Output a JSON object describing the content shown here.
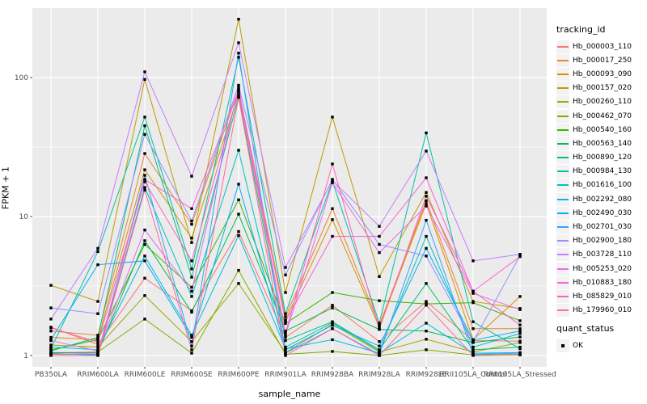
{
  "figure": {
    "x_axis_title": "sample_name",
    "y_axis_title": "FPKM + 1",
    "tracking_legend_title": "tracking_id",
    "quant_legend_title": "quant_status",
    "quant_status_label": "OK"
  },
  "chart_data": {
    "type": "line",
    "title": "",
    "xlabel": "sample_name",
    "ylabel": "FPKM + 1",
    "y_scale": "log10",
    "y_ticks": [
      1,
      10,
      100
    ],
    "y_tick_labels": [
      "1",
      "10",
      "100"
    ],
    "ylim": [
      0.83,
      316
    ],
    "grid": true,
    "panel_color": "#EBEBEB",
    "grid_color": "#FFFFFF",
    "tick_text_color": "#4D4D4D",
    "point_shape": "filled-black-square",
    "legend_position": "right",
    "quant_status": "OK",
    "categories": [
      "PB350LA",
      "RRIM600LA",
      "RRIM600LE",
      "RRIM600SE",
      "RRIM600PE",
      "RRIM901LA",
      "RRIM928BA",
      "RRIM928LA",
      "RRIM928LE",
      "RRII105LA_Control",
      "RRII105LA_Stressed"
    ],
    "series": [
      {
        "name": "Hb_000003_110",
        "color": "#F8766D",
        "values": [
          1.6,
          1.2,
          3.6,
          2.1,
          7.8,
          1.35,
          2.3,
          1.26,
          2.45,
          1.28,
          1.27
        ]
      },
      {
        "name": "Hb_000017_250",
        "color": "#EA8331",
        "values": [
          1.5,
          1.4,
          28.4,
          8.8,
          82,
          1.9,
          11.4,
          1.65,
          13.0,
          1.56,
          1.56
        ]
      },
      {
        "name": "Hb_000093_090",
        "color": "#D89000",
        "values": [
          1.35,
          1.3,
          21.7,
          7.0,
          76,
          1.8,
          9.5,
          1.6,
          12.4,
          1.3,
          2.66
        ]
      },
      {
        "name": "Hb_000157_020",
        "color": "#C09B00",
        "values": [
          3.2,
          2.45,
          97,
          6.5,
          263,
          2.84,
          52,
          3.7,
          14.9,
          2.45,
          2.18
        ]
      },
      {
        "name": "Hb_000260_110",
        "color": "#A3A500",
        "values": [
          1.19,
          1.15,
          2.7,
          1.26,
          3.3,
          1.05,
          1.68,
          1.06,
          1.31,
          1.06,
          1.24
        ]
      },
      {
        "name": "Hb_000462_070",
        "color": "#7CAE00",
        "values": [
          1.04,
          1.06,
          1.83,
          1.04,
          4.1,
          1.02,
          1.07,
          1.0,
          1.1,
          1.01,
          1.02
        ]
      },
      {
        "name": "Hb_000540_160",
        "color": "#39B600",
        "values": [
          1.1,
          1.3,
          6.3,
          3.1,
          13.2,
          1.7,
          2.84,
          2.48,
          2.35,
          2.4,
          1.78
        ]
      },
      {
        "name": "Hb_000563_140",
        "color": "#00BB4E",
        "values": [
          1.05,
          1.05,
          6.7,
          2.05,
          10.4,
          1.5,
          2.2,
          1.54,
          1.5,
          1.24,
          1.36
        ]
      },
      {
        "name": "Hb_000890_120",
        "color": "#00BF7D",
        "values": [
          1.08,
          1.35,
          45,
          3.66,
          73,
          1.28,
          1.75,
          1.1,
          3.3,
          1.1,
          1.15
        ]
      },
      {
        "name": "Hb_000984_130",
        "color": "#00C1A3",
        "values": [
          1.12,
          5.6,
          52,
          4.2,
          140,
          2.0,
          18.0,
          1.71,
          40,
          1.75,
          1.12
        ]
      },
      {
        "name": "Hb_001616_100",
        "color": "#00BFC4",
        "values": [
          1.02,
          1.02,
          16.2,
          2.66,
          30,
          1.15,
          1.72,
          1.08,
          7.2,
          1.15,
          1.44
        ]
      },
      {
        "name": "Hb_002292_080",
        "color": "#00BAE0",
        "values": [
          1.15,
          1.1,
          5.2,
          1.4,
          7.3,
          1.12,
          1.3,
          1.04,
          1.71,
          1.04,
          1.05
        ]
      },
      {
        "name": "Hb_002490_030",
        "color": "#00B0F6",
        "values": [
          1.3,
          4.5,
          4.8,
          1.35,
          17.1,
          1.1,
          1.65,
          1.17,
          5.9,
          1.29,
          1.5
        ]
      },
      {
        "name": "Hb_002701_030",
        "color": "#35A2FF",
        "values": [
          1.03,
          1.01,
          19.8,
          1.17,
          150,
          1.04,
          1.56,
          1.02,
          9.4,
          1.02,
          1.04
        ]
      },
      {
        "name": "Hb_002900_180",
        "color": "#9590FF",
        "values": [
          2.2,
          2.0,
          39,
          9.3,
          88,
          3.8,
          18.5,
          6.3,
          5.2,
          1.26,
          5.25
        ]
      },
      {
        "name": "Hb_003728_110",
        "color": "#C77CFF",
        "values": [
          1.83,
          5.9,
          110,
          19.5,
          178,
          4.3,
          18.2,
          8.5,
          29.6,
          4.8,
          5.35
        ]
      },
      {
        "name": "Hb_005253_020",
        "color": "#E76BF3",
        "values": [
          1.28,
          1.08,
          8.0,
          2.9,
          85,
          1.4,
          17.5,
          5.5,
          11.9,
          2.8,
          2.14
        ]
      },
      {
        "name": "Hb_010883_180",
        "color": "#FA62DB",
        "values": [
          1.02,
          1.04,
          18.5,
          11.4,
          81,
          1.75,
          7.2,
          7.2,
          19.0,
          2.9,
          5.15
        ]
      },
      {
        "name": "Hb_085829_010",
        "color": "#FF62BC",
        "values": [
          1.58,
          1.25,
          17.8,
          4.8,
          79,
          1.45,
          23.9,
          1.55,
          14.0,
          2.9,
          1.66
        ]
      },
      {
        "name": "Hb_179960_010",
        "color": "#FF6A98",
        "values": [
          1.0,
          1.0,
          15.5,
          1.1,
          72,
          1.0,
          1.56,
          1.0,
          2.3,
          1.0,
          1.01
        ]
      }
    ]
  }
}
